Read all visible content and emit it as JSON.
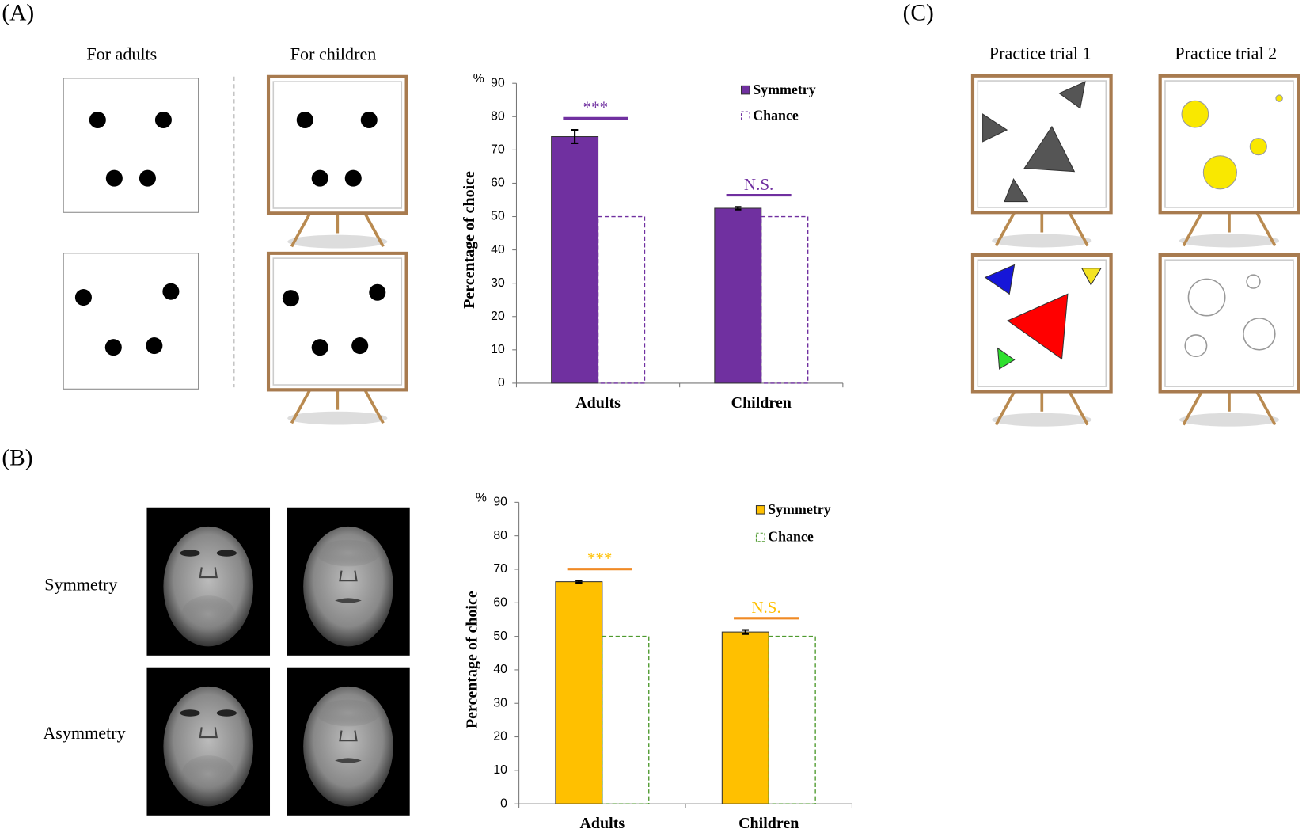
{
  "panels": {
    "a": "(A)",
    "b": "(B)",
    "c": "(C)"
  },
  "captions": {
    "adults": "For adults",
    "children": "For children",
    "symmetry": "Symmetry",
    "asymmetry": "Asymmetry",
    "trial1": "Practice trial  1",
    "trial2": "Practice trial  2"
  },
  "chart_data": [
    {
      "type": "bar",
      "ylabel": "Percentage of choice",
      "yunit": "%",
      "categories": [
        "Adults",
        "Children"
      ],
      "series": [
        {
          "name": "Symmetry",
          "color": "#7030a0",
          "values": [
            74,
            52.5
          ],
          "errors": [
            2,
            0.4
          ]
        },
        {
          "name": "Chance",
          "color": "#7030a0",
          "style": "dashed",
          "values": [
            50,
            50
          ]
        }
      ],
      "ylim": [
        0,
        90
      ],
      "yticks": [
        0,
        10,
        20,
        30,
        40,
        50,
        60,
        70,
        80,
        90
      ],
      "annotations": [
        "***",
        "N.S."
      ],
      "annotation_color": "#7030a0",
      "annotation_line_color": "#7030a0"
    },
    {
      "type": "bar",
      "ylabel": "Percentage of choice",
      "yunit": "%",
      "categories": [
        "Adults",
        "Children"
      ],
      "series": [
        {
          "name": "Symmetry",
          "color": "#ffc000",
          "values": [
            66.3,
            51.3
          ],
          "errors": [
            0.3,
            0.6
          ]
        },
        {
          "name": "Chance",
          "color": "#4e9a2e",
          "style": "dashed",
          "values": [
            50,
            50
          ]
        }
      ],
      "ylim": [
        0,
        90
      ],
      "yticks": [
        0,
        10,
        20,
        30,
        40,
        50,
        60,
        70,
        80,
        90
      ],
      "annotations": [
        "***",
        "N.S."
      ],
      "annotation_color": "#ffc000",
      "annotation_line_color": "#f08a24"
    }
  ]
}
